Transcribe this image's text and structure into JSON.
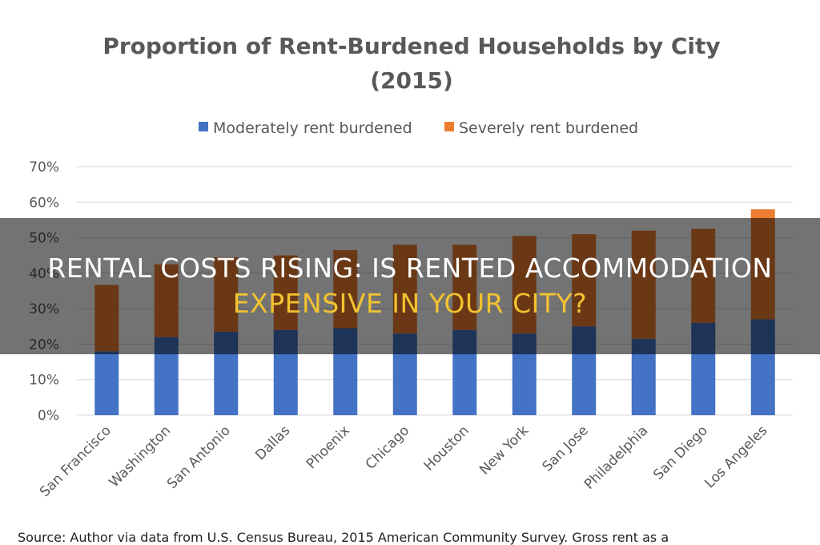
{
  "chart_data": {
    "type": "bar",
    "stacked": true,
    "title": "Proportion of Rent-Burdened Households by City",
    "subtitle": "(2015)",
    "categories": [
      "San Francisco",
      "Washington",
      "San Antonio",
      "Dallas",
      "Phoenix",
      "Chicago",
      "Houston",
      "New York",
      "San Jose",
      "Philadelphia",
      "San Diego",
      "Los Angeles"
    ],
    "series": [
      {
        "name": "Moderately rent burdened",
        "color": "#4472c4",
        "values": [
          18,
          22,
          23.5,
          24,
          24.5,
          23,
          24,
          23,
          25,
          21.5,
          26,
          27
        ]
      },
      {
        "name": "Severely rent burdened",
        "color": "#ed7d31",
        "values": [
          18.7,
          20.5,
          21,
          21,
          22,
          25,
          24,
          27.5,
          26,
          30.5,
          26.5,
          31
        ]
      }
    ],
    "y_ticks": [
      "0%",
      "10%",
      "20%",
      "30%",
      "40%",
      "50%",
      "60%",
      "70%"
    ],
    "ylim": [
      0,
      70
    ],
    "grid": true,
    "legend_position": "top"
  },
  "headline": {
    "line1": "Rental costs rising: Is rented accommodation",
    "line2": "expensive in your city?"
  },
  "source_text": "Source: Author via data from U.S. Census Bureau, 2015 American Community Survey. Gross rent as a"
}
